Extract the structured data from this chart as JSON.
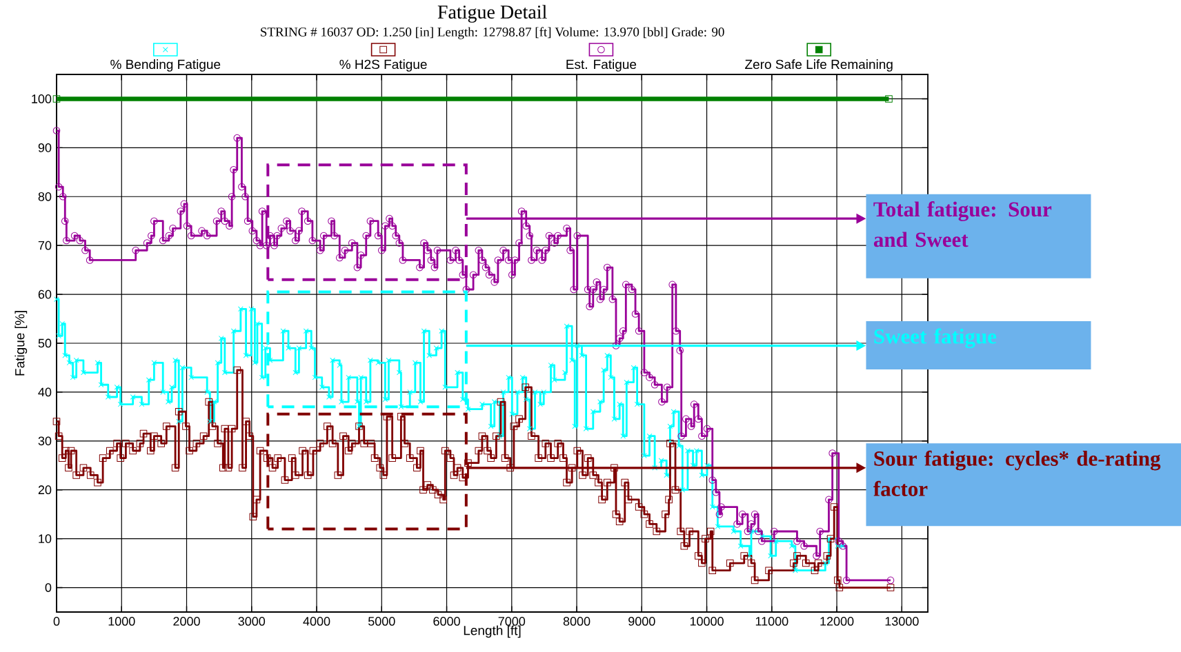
{
  "chart_data": {
    "type": "step",
    "title": "Fatigue Detail",
    "subtitle": "STRING # 16037 OD: 1.250 [in] Length: 12798.87 [ft] Volume: 13.970 [bbl] Grade: 90",
    "xlabel": "Length [ft]",
    "ylabel": "Fatigue [%]",
    "xlim": [
      0,
      13400
    ],
    "ylim": [
      -5,
      105
    ],
    "xticks": [
      0,
      1000,
      2000,
      3000,
      4000,
      5000,
      6000,
      7000,
      8000,
      9000,
      10000,
      11000,
      12000,
      13000
    ],
    "yticks": [
      0,
      10,
      20,
      30,
      40,
      50,
      60,
      70,
      80,
      90,
      100
    ],
    "grid": true,
    "legend": "top",
    "series": [
      {
        "name": "% Bending Fatigue",
        "color": "#00ffff",
        "marker": "cross",
        "x": [
          0,
          33,
          87,
          130,
          196,
          250,
          304,
          413,
          631,
          685,
          793,
          929,
          983,
          1174,
          1310,
          1419,
          1500,
          1636,
          1717,
          1772,
          1826,
          1880,
          1935,
          2071,
          2315,
          2359,
          2424,
          2478,
          2533,
          2587,
          2723,
          2831,
          2913,
          2995,
          3049,
          3087,
          3158,
          3212,
          3283,
          3484,
          3565,
          3674,
          3728,
          3837,
          3918,
          3973,
          4082,
          4190,
          4245,
          4353,
          4381,
          4490,
          4625,
          4652,
          4680,
          4761,
          4826,
          4946,
          5054,
          5108,
          5271,
          5298,
          5434,
          5515,
          5596,
          5650,
          5732,
          5840,
          5921,
          5976,
          6165,
          6247,
          6328,
          6545,
          6680,
          6734,
          6816,
          6870,
          6951,
          7005,
          7087,
          7168,
          7222,
          7276,
          7358,
          7439,
          7493,
          7602,
          7656,
          7819,
          7846,
          7927,
          7970,
          8008,
          8079,
          8144,
          8252,
          8360,
          8415,
          8469,
          8523,
          8577,
          8659,
          8713,
          8767,
          8875,
          8929,
          9038,
          9119,
          9200,
          9300,
          9381,
          9436,
          9490,
          9571,
          9626,
          9707,
          9788,
          9843,
          9924,
          10005,
          10087,
          10168,
          10412,
          10521,
          10657,
          10684,
          10847,
          10982,
          11063,
          11308,
          11362,
          11823,
          11877,
          12013,
          12094
        ],
        "values": [
          59,
          51.5,
          54,
          47.5,
          46,
          43,
          46.5,
          44,
          46,
          41.5,
          39,
          41,
          37.5,
          39,
          37.5,
          42.5,
          46,
          40,
          38,
          41,
          46.5,
          34,
          45,
          43,
          40,
          34,
          38,
          46,
          51,
          44,
          52.5,
          57,
          47.5,
          57,
          46,
          54,
          43,
          49,
          46.5,
          52.5,
          49,
          44,
          49,
          52.5,
          49,
          43,
          41,
          39,
          46.5,
          45.5,
          38,
          43,
          38,
          33,
          43,
          38,
          46.5,
          46,
          38.5,
          46.5,
          44,
          37,
          40,
          46,
          38,
          52.5,
          47.5,
          49,
          52.5,
          41,
          44,
          38.5,
          36.5,
          37.5,
          33,
          38,
          31,
          40,
          43,
          35.5,
          40,
          43,
          38.5,
          32.5,
          40,
          37.5,
          40,
          45.5,
          42.5,
          44,
          53.5,
          46.5,
          33,
          49.5,
          47.5,
          32.5,
          36,
          38,
          44.5,
          47.5,
          43,
          34.5,
          37.5,
          31,
          42,
          45,
          37.5,
          27,
          31,
          24.5,
          26,
          23,
          33,
          36,
          29,
          20,
          28,
          25,
          28,
          23,
          25,
          16.5,
          12.5,
          11.5,
          8.5,
          6.5,
          11.5,
          10.5,
          6.5,
          9.5,
          8.5,
          3.5,
          5,
          10,
          8.5,
          8.5
        ]
      },
      {
        "name": "% H2S Fatigue",
        "color": "#800000",
        "marker": "square",
        "x": [
          0,
          33,
          87,
          141,
          185,
          223,
          304,
          413,
          522,
          631,
          712,
          820,
          929,
          983,
          1065,
          1174,
          1283,
          1337,
          1446,
          1500,
          1609,
          1690,
          1826,
          1880,
          1989,
          2043,
          2152,
          2261,
          2342,
          2396,
          2478,
          2560,
          2587,
          2641,
          2696,
          2777,
          2859,
          2913,
          2967,
          3022,
          3076,
          3131,
          3239,
          3321,
          3402,
          3511,
          3620,
          3674,
          3783,
          3864,
          3946,
          4054,
          4163,
          4245,
          4327,
          4408,
          4490,
          4544,
          4652,
          4729,
          4837,
          4892,
          4973,
          5027,
          5081,
          5163,
          5298,
          5352,
          5434,
          5542,
          5596,
          5639,
          5705,
          5786,
          5867,
          5948,
          5976,
          6057,
          6111,
          6165,
          6247,
          6328,
          6491,
          6545,
          6626,
          6680,
          6762,
          6832,
          6897,
          6978,
          7033,
          7114,
          7211,
          7304,
          7412,
          7520,
          7602,
          7710,
          7792,
          7846,
          7927,
          8008,
          8090,
          8171,
          8252,
          8333,
          8388,
          8469,
          8577,
          8604,
          8659,
          8740,
          8794,
          8956,
          9038,
          9119,
          9228,
          9363,
          9417,
          9436,
          9517,
          9598,
          9653,
          9734,
          9870,
          9924,
          9978,
          10060,
          10087,
          10358,
          10575,
          10684,
          10738,
          10955,
          11335,
          11389,
          11525,
          11660,
          11715,
          11850,
          11905,
          11959,
          12013,
          12040,
          12827
        ],
        "values": [
          34,
          31,
          26.5,
          28,
          24.5,
          28,
          23,
          24.5,
          23,
          21.5,
          26.5,
          28,
          29.5,
          26.5,
          29.5,
          28,
          29.5,
          31.5,
          28,
          31,
          29.5,
          33,
          24.5,
          36,
          33,
          28,
          29.5,
          31,
          38,
          33,
          29.5,
          24.5,
          32.5,
          24.5,
          32.5,
          44.5,
          24.5,
          34,
          31,
          14.5,
          18,
          28,
          26.5,
          24.5,
          26.5,
          22,
          26.5,
          23,
          28,
          23,
          28,
          29.5,
          33,
          29.5,
          23,
          31,
          28,
          29.5,
          33,
          29.5,
          29.5,
          26.5,
          24.5,
          23,
          35,
          26.5,
          35,
          29.5,
          26.5,
          24.5,
          28,
          20,
          21,
          20,
          19,
          18,
          28,
          26.5,
          23,
          24.5,
          22.5,
          25.5,
          28,
          31,
          28,
          26.5,
          31,
          38,
          26.5,
          24.5,
          33,
          34.5,
          41,
          31,
          26.5,
          29.5,
          26.5,
          29.5,
          26.5,
          21.5,
          24.5,
          28,
          23,
          26.5,
          23,
          21.5,
          18,
          21.5,
          24.5,
          15,
          13.5,
          21.5,
          18,
          16.5,
          15,
          13,
          11.5,
          15,
          18,
          29.5,
          20,
          11.5,
          8.5,
          11.5,
          6.5,
          5,
          10,
          11.5,
          3.5,
          5,
          6.5,
          5,
          1.5,
          3.5,
          5,
          6.5,
          5,
          3.5,
          5,
          6.5,
          10,
          16.5,
          1.5,
          0,
          0
        ]
      },
      {
        "name": "Est. Fatigue",
        "color": "#990099",
        "marker": "circle",
        "x": [
          0,
          33,
          98,
          130,
          152,
          277,
          359,
          440,
          511,
          1217,
          1391,
          1457,
          1500,
          1636,
          1728,
          1788,
          1908,
          1962,
          2006,
          2071,
          2234,
          2315,
          2462,
          2533,
          2587,
          2658,
          2696,
          2723,
          2777,
          2848,
          2902,
          2940,
          3011,
          3076,
          3131,
          3163,
          3228,
          3283,
          3348,
          3391,
          3457,
          3538,
          3593,
          3674,
          3728,
          3772,
          3864,
          3935,
          4054,
          4109,
          4228,
          4272,
          4353,
          4435,
          4544,
          4625,
          4680,
          4761,
          4826,
          4946,
          5000,
          5054,
          5119,
          5163,
          5217,
          5271,
          5325,
          5585,
          5650,
          5705,
          5759,
          5813,
          5856,
          6057,
          6138,
          6192,
          6247,
          6301,
          6409,
          6491,
          6545,
          6599,
          6653,
          6734,
          6789,
          6870,
          6951,
          7005,
          7049,
          7114,
          7152,
          7222,
          7276,
          7304,
          7385,
          7466,
          7520,
          7575,
          7656,
          7710,
          7846,
          7900,
          7954,
          8008,
          8171,
          8198,
          8252,
          8306,
          8360,
          8415,
          8469,
          8550,
          8604,
          8659,
          8713,
          8756,
          8848,
          8902,
          8956,
          9038,
          9119,
          9200,
          9309,
          9390,
          9471,
          9526,
          9588,
          9609,
          9680,
          9761,
          9805,
          9870,
          9924,
          10005,
          10087,
          10141,
          10195,
          10222,
          10467,
          10548,
          10630,
          10684,
          10738,
          10792,
          10847,
          11036,
          11389,
          11497,
          11687,
          11742,
          11877,
          11932,
          12029,
          12094,
          12149,
          12827
        ],
        "values": [
          93.5,
          82,
          80,
          75,
          71,
          72,
          71,
          69,
          67,
          69,
          70.5,
          72,
          75,
          71,
          72,
          73.5,
          77,
          78.5,
          74,
          72,
          73,
          72,
          75,
          77,
          75,
          74,
          80,
          85.5,
          92,
          82,
          80,
          75,
          73,
          71,
          70,
          77,
          70,
          72,
          70,
          72,
          73.5,
          75,
          73,
          71,
          73,
          77,
          75,
          71,
          69,
          72,
          75,
          72,
          67.5,
          69,
          70.5,
          65.5,
          68,
          72,
          75,
          72,
          69,
          74,
          75.5,
          74,
          72,
          70.5,
          67,
          65.5,
          70.5,
          69,
          67,
          65.5,
          69,
          67,
          69,
          67,
          64,
          61,
          64,
          69,
          67,
          65.5,
          64,
          62.5,
          67,
          69,
          67,
          64,
          67,
          70.5,
          77,
          74,
          72,
          67,
          69,
          67,
          69,
          72,
          70.5,
          72,
          73.5,
          69,
          61,
          72,
          61,
          57.5,
          61,
          62.5,
          59,
          61,
          65.5,
          59,
          49.5,
          51,
          52.5,
          62,
          61,
          56,
          52.5,
          44,
          43,
          41.5,
          38,
          41,
          62,
          52.5,
          48.5,
          31,
          34.5,
          33,
          37.5,
          34.5,
          31,
          32.5,
          22,
          19.5,
          15,
          16.5,
          13,
          15,
          11.5,
          13,
          15,
          11.5,
          9.5,
          11.5,
          9.5,
          8.5,
          6.5,
          11.5,
          18,
          27.5,
          9.5,
          8.5,
          1.5,
          1.5
        ]
      },
      {
        "name": "Zero Safe Life Remaining",
        "color": "#008000",
        "marker": "square",
        "type": "line",
        "x": [
          0,
          12800
        ],
        "values": [
          100,
          100
        ]
      }
    ],
    "annotations": [
      "Total fatigue: Sour and Sweet",
      "Sweet fatigue",
      "Sour fatigue: cycles* de-rating factor"
    ]
  }
}
